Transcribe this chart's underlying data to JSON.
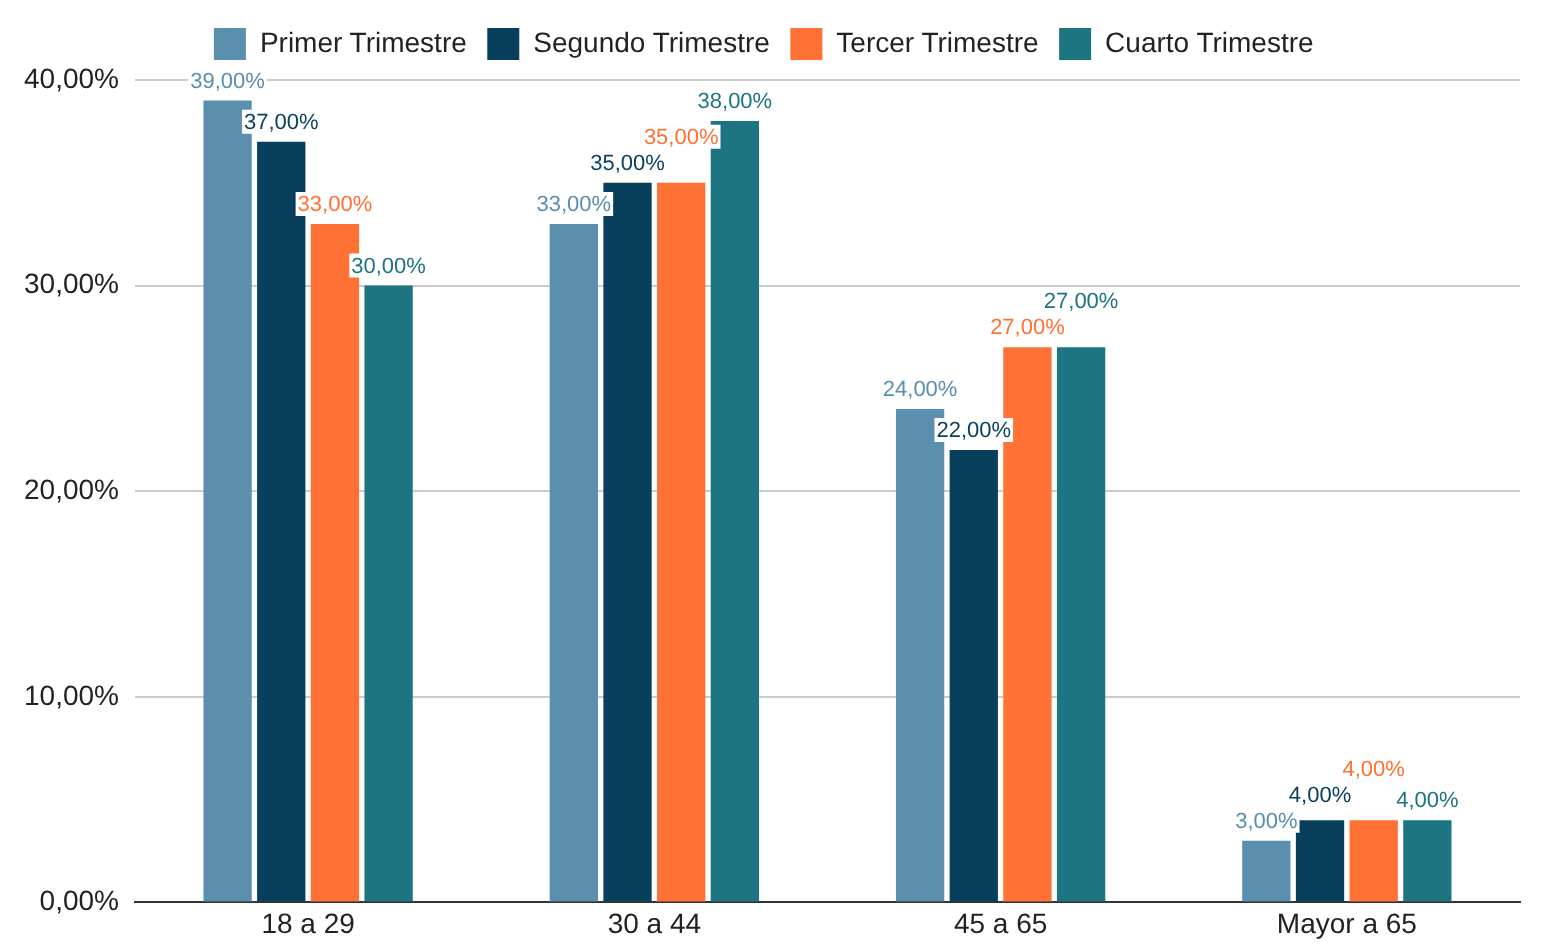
{
  "chart_data": {
    "type": "bar",
    "categories": [
      "18 a 29",
      "30 a 44",
      "45 a 65",
      "Mayor a 65"
    ],
    "series": [
      {
        "name": "Primer Trimestre",
        "color": "#5a8fae",
        "values": [
          39,
          33,
          24,
          3
        ],
        "value_labels": [
          "39,00%",
          "33,00%",
          "24,00%",
          "3,00%"
        ]
      },
      {
        "name": "Segundo Trimestre",
        "color": "#073f5c",
        "values": [
          37,
          35,
          22,
          4
        ],
        "value_labels": [
          "37,00%",
          "35,00%",
          "22,00%",
          "4,00%"
        ]
      },
      {
        "name": "Tercer Trimestre",
        "color": "#ff7135",
        "values": [
          33,
          35,
          27,
          4
        ],
        "value_labels": [
          "33,00%",
          "35,00%",
          "27,00%",
          "4,00%"
        ]
      },
      {
        "name": "Cuarto Trimestre",
        "color": "#1e7582",
        "values": [
          30,
          38,
          27,
          4
        ],
        "value_labels": [
          "30,00%",
          "38,00%",
          "27,00%",
          "4,00%"
        ]
      }
    ],
    "ylim": [
      0,
      40
    ],
    "yticks": [
      {
        "value": 0,
        "label": "0,00%"
      },
      {
        "value": 10,
        "label": "10,00%"
      },
      {
        "value": 20,
        "label": "20,00%"
      },
      {
        "value": 30,
        "label": "30,00%"
      },
      {
        "value": 40,
        "label": "40,00%"
      }
    ],
    "grid": "y",
    "legend": "top"
  }
}
